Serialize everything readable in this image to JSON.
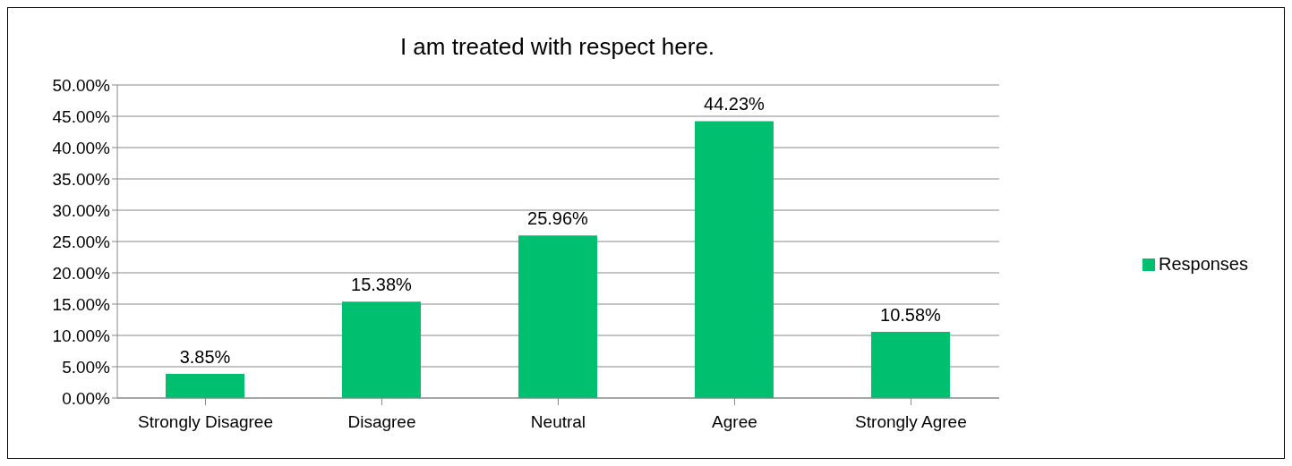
{
  "chart_data": {
    "type": "bar",
    "title": "I am treated with respect here.",
    "categories": [
      "Strongly Disagree",
      "Disagree",
      "Neutral",
      "Agree",
      "Strongly Agree"
    ],
    "series": [
      {
        "name": "Responses",
        "color": "#00c070",
        "values": [
          3.85,
          15.38,
          25.96,
          44.23,
          10.58
        ],
        "value_labels": [
          "3.85%",
          "15.38%",
          "25.96%",
          "44.23%",
          "10.58%"
        ]
      }
    ],
    "ylim": [
      0,
      50
    ],
    "yticks": [
      {
        "value": 0,
        "label": "0.00%"
      },
      {
        "value": 5,
        "label": "5.00%"
      },
      {
        "value": 10,
        "label": "10.00%"
      },
      {
        "value": 15,
        "label": "15.00%"
      },
      {
        "value": 20,
        "label": "20.00%"
      },
      {
        "value": 25,
        "label": "25.00%"
      },
      {
        "value": 30,
        "label": "30.00%"
      },
      {
        "value": 35,
        "label": "35.00%"
      },
      {
        "value": 40,
        "label": "40.00%"
      },
      {
        "value": 45,
        "label": "45.00%"
      },
      {
        "value": 50,
        "label": "50.00%"
      }
    ],
    "grid": "y",
    "legend": "right"
  }
}
